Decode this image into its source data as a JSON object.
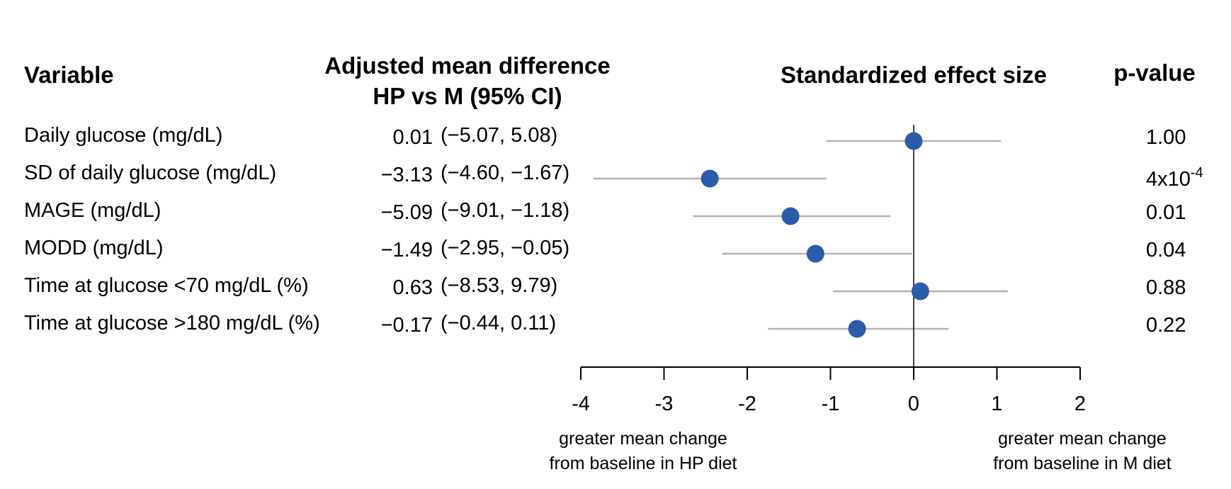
{
  "chart_data": {
    "type": "forest",
    "headers": {
      "variable": "Variable",
      "difference": [
        "Adjusted mean difference",
        "HP vs M (95% CI)"
      ],
      "effect": "Standardized effect size",
      "pvalue": "p-value"
    },
    "rows": [
      {
        "variable": "Daily glucose (mg/dL)",
        "diff": "0.01",
        "ci": "(−5.07, 5.08)",
        "effect": 0.0,
        "lower": -1.05,
        "upper": 1.05,
        "pvalue": "1.00"
      },
      {
        "variable": "SD of daily glucose (mg/dL)",
        "diff": "−3.13",
        "ci": "(−4.60, −1.67)",
        "effect": -2.45,
        "lower": -3.85,
        "upper": -1.05,
        "pvalue": "4x10",
        "pvalue_exp": "-4"
      },
      {
        "variable": "MAGE (mg/dL)",
        "diff": "−5.09",
        "ci": "(−9.01, −1.18)",
        "effect": -1.48,
        "lower": -2.65,
        "upper": -0.28,
        "pvalue": "0.01"
      },
      {
        "variable": "MODD (mg/dL)",
        "diff": "−1.49",
        "ci": "(−2.95, −0.05)",
        "effect": -1.18,
        "lower": -2.3,
        "upper": -0.02,
        "pvalue": "0.04"
      },
      {
        "variable": "Time at glucose <70 mg/dL (%)",
        "diff": "0.63",
        "ci": "(−8.53, 9.79)",
        "effect": 0.08,
        "lower": -0.97,
        "upper": 1.13,
        "pvalue": "0.88"
      },
      {
        "variable": "Time at glucose >180 mg/dL (%)",
        "diff": "−0.17",
        "ci": "(−0.44, 0.11)",
        "effect": -0.68,
        "lower": -1.75,
        "upper": 0.42,
        "pvalue": "0.22"
      }
    ],
    "xlim": [
      -4,
      2
    ],
    "xticks": [
      "-4",
      "-3",
      "-2",
      "-1",
      "0",
      "1",
      "2"
    ],
    "reference_line": 0,
    "footnote_left": [
      "greater mean change",
      "from baseline in HP diet"
    ],
    "footnote_right": [
      "greater mean change",
      "from baseline in M diet"
    ],
    "colors": {
      "point": "#2a5caa",
      "ci_line": "#b3b3b3",
      "axis": "#000000"
    }
  }
}
